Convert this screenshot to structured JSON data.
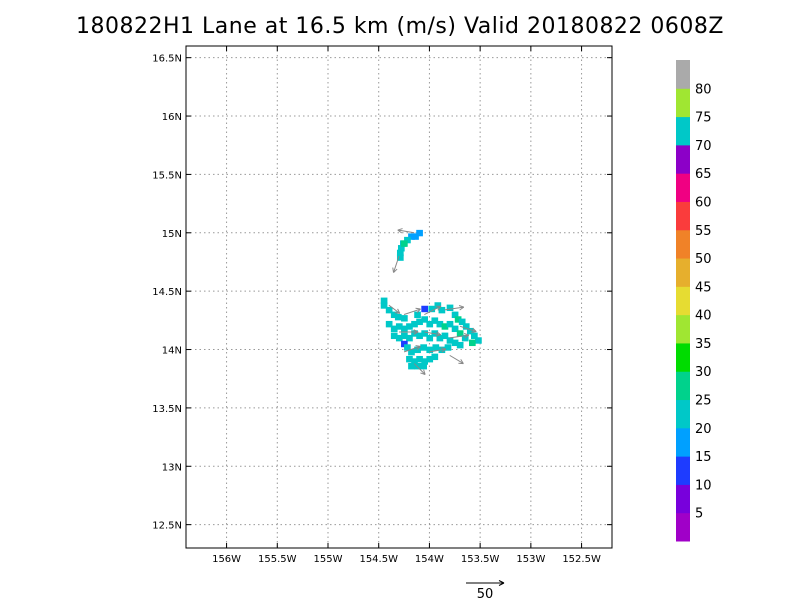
{
  "title": "180822H1 Lane at 16.5 km (m/s) Valid 20180822 0608Z",
  "chart_data": {
    "type": "heatmap",
    "title": "180822H1 Lane at 16.5 km (m/s) Valid 20180822 0608Z",
    "xlabel": "",
    "ylabel": "",
    "xlim": [
      -156.4,
      -152.2
    ],
    "ylim": [
      12.3,
      16.6
    ],
    "grid": true,
    "x_ticks": [
      {
        "v": -156.0,
        "label": "156W"
      },
      {
        "v": -155.5,
        "label": "155.5W"
      },
      {
        "v": -155.0,
        "label": "155W"
      },
      {
        "v": -154.5,
        "label": "154.5W"
      },
      {
        "v": -154.0,
        "label": "154W"
      },
      {
        "v": -153.5,
        "label": "153.5W"
      },
      {
        "v": -153.0,
        "label": "153W"
      },
      {
        "v": -152.5,
        "label": "152.5W"
      }
    ],
    "y_ticks": [
      {
        "v": 12.5,
        "label": "12.5N"
      },
      {
        "v": 13.0,
        "label": "13N"
      },
      {
        "v": 13.5,
        "label": "13.5N"
      },
      {
        "v": 14.0,
        "label": "14N"
      },
      {
        "v": 14.5,
        "label": "14.5N"
      },
      {
        "v": 15.0,
        "label": "15N"
      },
      {
        "v": 15.5,
        "label": "15.5N"
      },
      {
        "v": 16.0,
        "label": "16N"
      },
      {
        "v": 16.5,
        "label": "16.5N"
      }
    ],
    "colorbar": {
      "colors": [
        "#a000c8",
        "#7800dc",
        "#1e3cff",
        "#00a0ff",
        "#00c8c8",
        "#00d28c",
        "#00dc00",
        "#a0e632",
        "#e6dc32",
        "#e6af2d",
        "#f08228",
        "#fa3c3c",
        "#f00082",
        "#8c00c8",
        "#00c8c8",
        "#a0e632",
        "#aaaaaa"
      ],
      "labels": [
        "5",
        "10",
        "15",
        "20",
        "25",
        "30",
        "35",
        "40",
        "45",
        "50",
        "55",
        "60",
        "65",
        "70",
        "75",
        "80"
      ]
    },
    "cells": [
      {
        "lon": -154.1,
        "lat": 15.0,
        "v": 15
      },
      {
        "lon": -154.14,
        "lat": 14.97,
        "v": 15
      },
      {
        "lon": -154.18,
        "lat": 14.97,
        "v": 15
      },
      {
        "lon": -154.22,
        "lat": 14.94,
        "v": 20
      },
      {
        "lon": -154.26,
        "lat": 14.91,
        "v": 20
      },
      {
        "lon": -154.28,
        "lat": 14.87,
        "v": 20
      },
      {
        "lon": -154.29,
        "lat": 14.83,
        "v": 20
      },
      {
        "lon": -154.29,
        "lat": 14.79,
        "v": 20
      },
      {
        "lon": -154.25,
        "lat": 14.91,
        "v": 25
      },
      {
        "lon": -154.45,
        "lat": 14.42,
        "v": 20
      },
      {
        "lon": -154.45,
        "lat": 14.38,
        "v": 20
      },
      {
        "lon": -154.4,
        "lat": 14.34,
        "v": 20
      },
      {
        "lon": -154.35,
        "lat": 14.3,
        "v": 20
      },
      {
        "lon": -154.31,
        "lat": 14.28,
        "v": 20
      },
      {
        "lon": -154.25,
        "lat": 14.27,
        "v": 20
      },
      {
        "lon": -154.12,
        "lat": 14.3,
        "v": 20
      },
      {
        "lon": -154.05,
        "lat": 14.35,
        "v": 10
      },
      {
        "lon": -153.98,
        "lat": 14.35,
        "v": 20
      },
      {
        "lon": -153.92,
        "lat": 14.38,
        "v": 20
      },
      {
        "lon": -153.88,
        "lat": 14.34,
        "v": 20
      },
      {
        "lon": -153.8,
        "lat": 14.36,
        "v": 20
      },
      {
        "lon": -153.75,
        "lat": 14.3,
        "v": 20
      },
      {
        "lon": -153.72,
        "lat": 14.26,
        "v": 25
      },
      {
        "lon": -153.68,
        "lat": 14.24,
        "v": 20
      },
      {
        "lon": -153.64,
        "lat": 14.2,
        "v": 20
      },
      {
        "lon": -153.6,
        "lat": 14.16,
        "v": 20
      },
      {
        "lon": -153.56,
        "lat": 14.12,
        "v": 20
      },
      {
        "lon": -153.52,
        "lat": 14.08,
        "v": 20
      },
      {
        "lon": -153.58,
        "lat": 14.06,
        "v": 25
      },
      {
        "lon": -154.4,
        "lat": 14.22,
        "v": 20
      },
      {
        "lon": -154.35,
        "lat": 14.18,
        "v": 20
      },
      {
        "lon": -154.3,
        "lat": 14.2,
        "v": 20
      },
      {
        "lon": -154.25,
        "lat": 14.18,
        "v": 20
      },
      {
        "lon": -154.2,
        "lat": 14.2,
        "v": 20
      },
      {
        "lon": -154.15,
        "lat": 14.22,
        "v": 20
      },
      {
        "lon": -154.1,
        "lat": 14.24,
        "v": 20
      },
      {
        "lon": -154.05,
        "lat": 14.26,
        "v": 20
      },
      {
        "lon": -154.0,
        "lat": 14.22,
        "v": 20
      },
      {
        "lon": -153.95,
        "lat": 14.25,
        "v": 20
      },
      {
        "lon": -153.9,
        "lat": 14.22,
        "v": 20
      },
      {
        "lon": -153.85,
        "lat": 14.2,
        "v": 25
      },
      {
        "lon": -153.8,
        "lat": 14.22,
        "v": 20
      },
      {
        "lon": -153.75,
        "lat": 14.18,
        "v": 20
      },
      {
        "lon": -153.7,
        "lat": 14.14,
        "v": 25
      },
      {
        "lon": -153.65,
        "lat": 14.1,
        "v": 20
      },
      {
        "lon": -154.35,
        "lat": 14.12,
        "v": 20
      },
      {
        "lon": -154.3,
        "lat": 14.1,
        "v": 20
      },
      {
        "lon": -154.25,
        "lat": 14.12,
        "v": 20
      },
      {
        "lon": -154.2,
        "lat": 14.1,
        "v": 20
      },
      {
        "lon": -154.15,
        "lat": 14.14,
        "v": 20
      },
      {
        "lon": -154.1,
        "lat": 14.12,
        "v": 20
      },
      {
        "lon": -154.05,
        "lat": 14.14,
        "v": 20
      },
      {
        "lon": -154.0,
        "lat": 14.1,
        "v": 20
      },
      {
        "lon": -153.95,
        "lat": 14.14,
        "v": 20
      },
      {
        "lon": -153.9,
        "lat": 14.1,
        "v": 20
      },
      {
        "lon": -153.85,
        "lat": 14.12,
        "v": 20
      },
      {
        "lon": -153.8,
        "lat": 14.08,
        "v": 20
      },
      {
        "lon": -153.75,
        "lat": 14.06,
        "v": 20
      },
      {
        "lon": -153.7,
        "lat": 14.04,
        "v": 20
      },
      {
        "lon": -154.25,
        "lat": 14.05,
        "v": 10
      },
      {
        "lon": -154.22,
        "lat": 14.02,
        "v": 20
      },
      {
        "lon": -154.18,
        "lat": 13.98,
        "v": 20
      },
      {
        "lon": -154.12,
        "lat": 14.0,
        "v": 20
      },
      {
        "lon": -154.06,
        "lat": 14.02,
        "v": 20
      },
      {
        "lon": -154.0,
        "lat": 14.0,
        "v": 20
      },
      {
        "lon": -153.94,
        "lat": 14.02,
        "v": 20
      },
      {
        "lon": -153.88,
        "lat": 14.0,
        "v": 20
      },
      {
        "lon": -153.82,
        "lat": 14.02,
        "v": 20
      },
      {
        "lon": -154.2,
        "lat": 13.92,
        "v": 20
      },
      {
        "lon": -154.15,
        "lat": 13.9,
        "v": 20
      },
      {
        "lon": -154.1,
        "lat": 13.92,
        "v": 20
      },
      {
        "lon": -154.05,
        "lat": 13.9,
        "v": 20
      },
      {
        "lon": -154.0,
        "lat": 13.92,
        "v": 20
      },
      {
        "lon": -153.95,
        "lat": 13.94,
        "v": 20
      },
      {
        "lon": -154.18,
        "lat": 13.86,
        "v": 20
      },
      {
        "lon": -154.12,
        "lat": 13.86,
        "v": 20
      },
      {
        "lon": -154.06,
        "lat": 13.86,
        "v": 20
      }
    ],
    "vectors": [
      {
        "lon": -154.15,
        "lat": 15.0,
        "u": -12,
        "v": 2
      },
      {
        "lon": -154.3,
        "lat": 14.8,
        "u": -4,
        "v": -12
      },
      {
        "lon": -154.4,
        "lat": 14.38,
        "u": 8,
        "v": -6
      },
      {
        "lon": -154.25,
        "lat": 14.3,
        "u": 12,
        "v": 4
      },
      {
        "lon": -154.05,
        "lat": 14.3,
        "u": 12,
        "v": 6
      },
      {
        "lon": -153.85,
        "lat": 14.34,
        "u": 14,
        "v": 2
      },
      {
        "lon": -153.7,
        "lat": 14.2,
        "u": 12,
        "v": -4
      },
      {
        "lon": -154.3,
        "lat": 14.15,
        "u": 14,
        "v": 0
      },
      {
        "lon": -154.05,
        "lat": 14.15,
        "u": 12,
        "v": -2
      },
      {
        "lon": -153.8,
        "lat": 14.1,
        "u": 14,
        "v": 2
      },
      {
        "lon": -154.25,
        "lat": 13.98,
        "u": 12,
        "v": 4
      },
      {
        "lon": -154.0,
        "lat": 13.98,
        "u": 12,
        "v": 2
      },
      {
        "lon": -153.8,
        "lat": 13.95,
        "u": 10,
        "v": -6
      },
      {
        "lon": -154.15,
        "lat": 13.88,
        "u": 8,
        "v": -8
      }
    ],
    "reference_vector": {
      "label": "50",
      "magnitude": 50
    }
  }
}
